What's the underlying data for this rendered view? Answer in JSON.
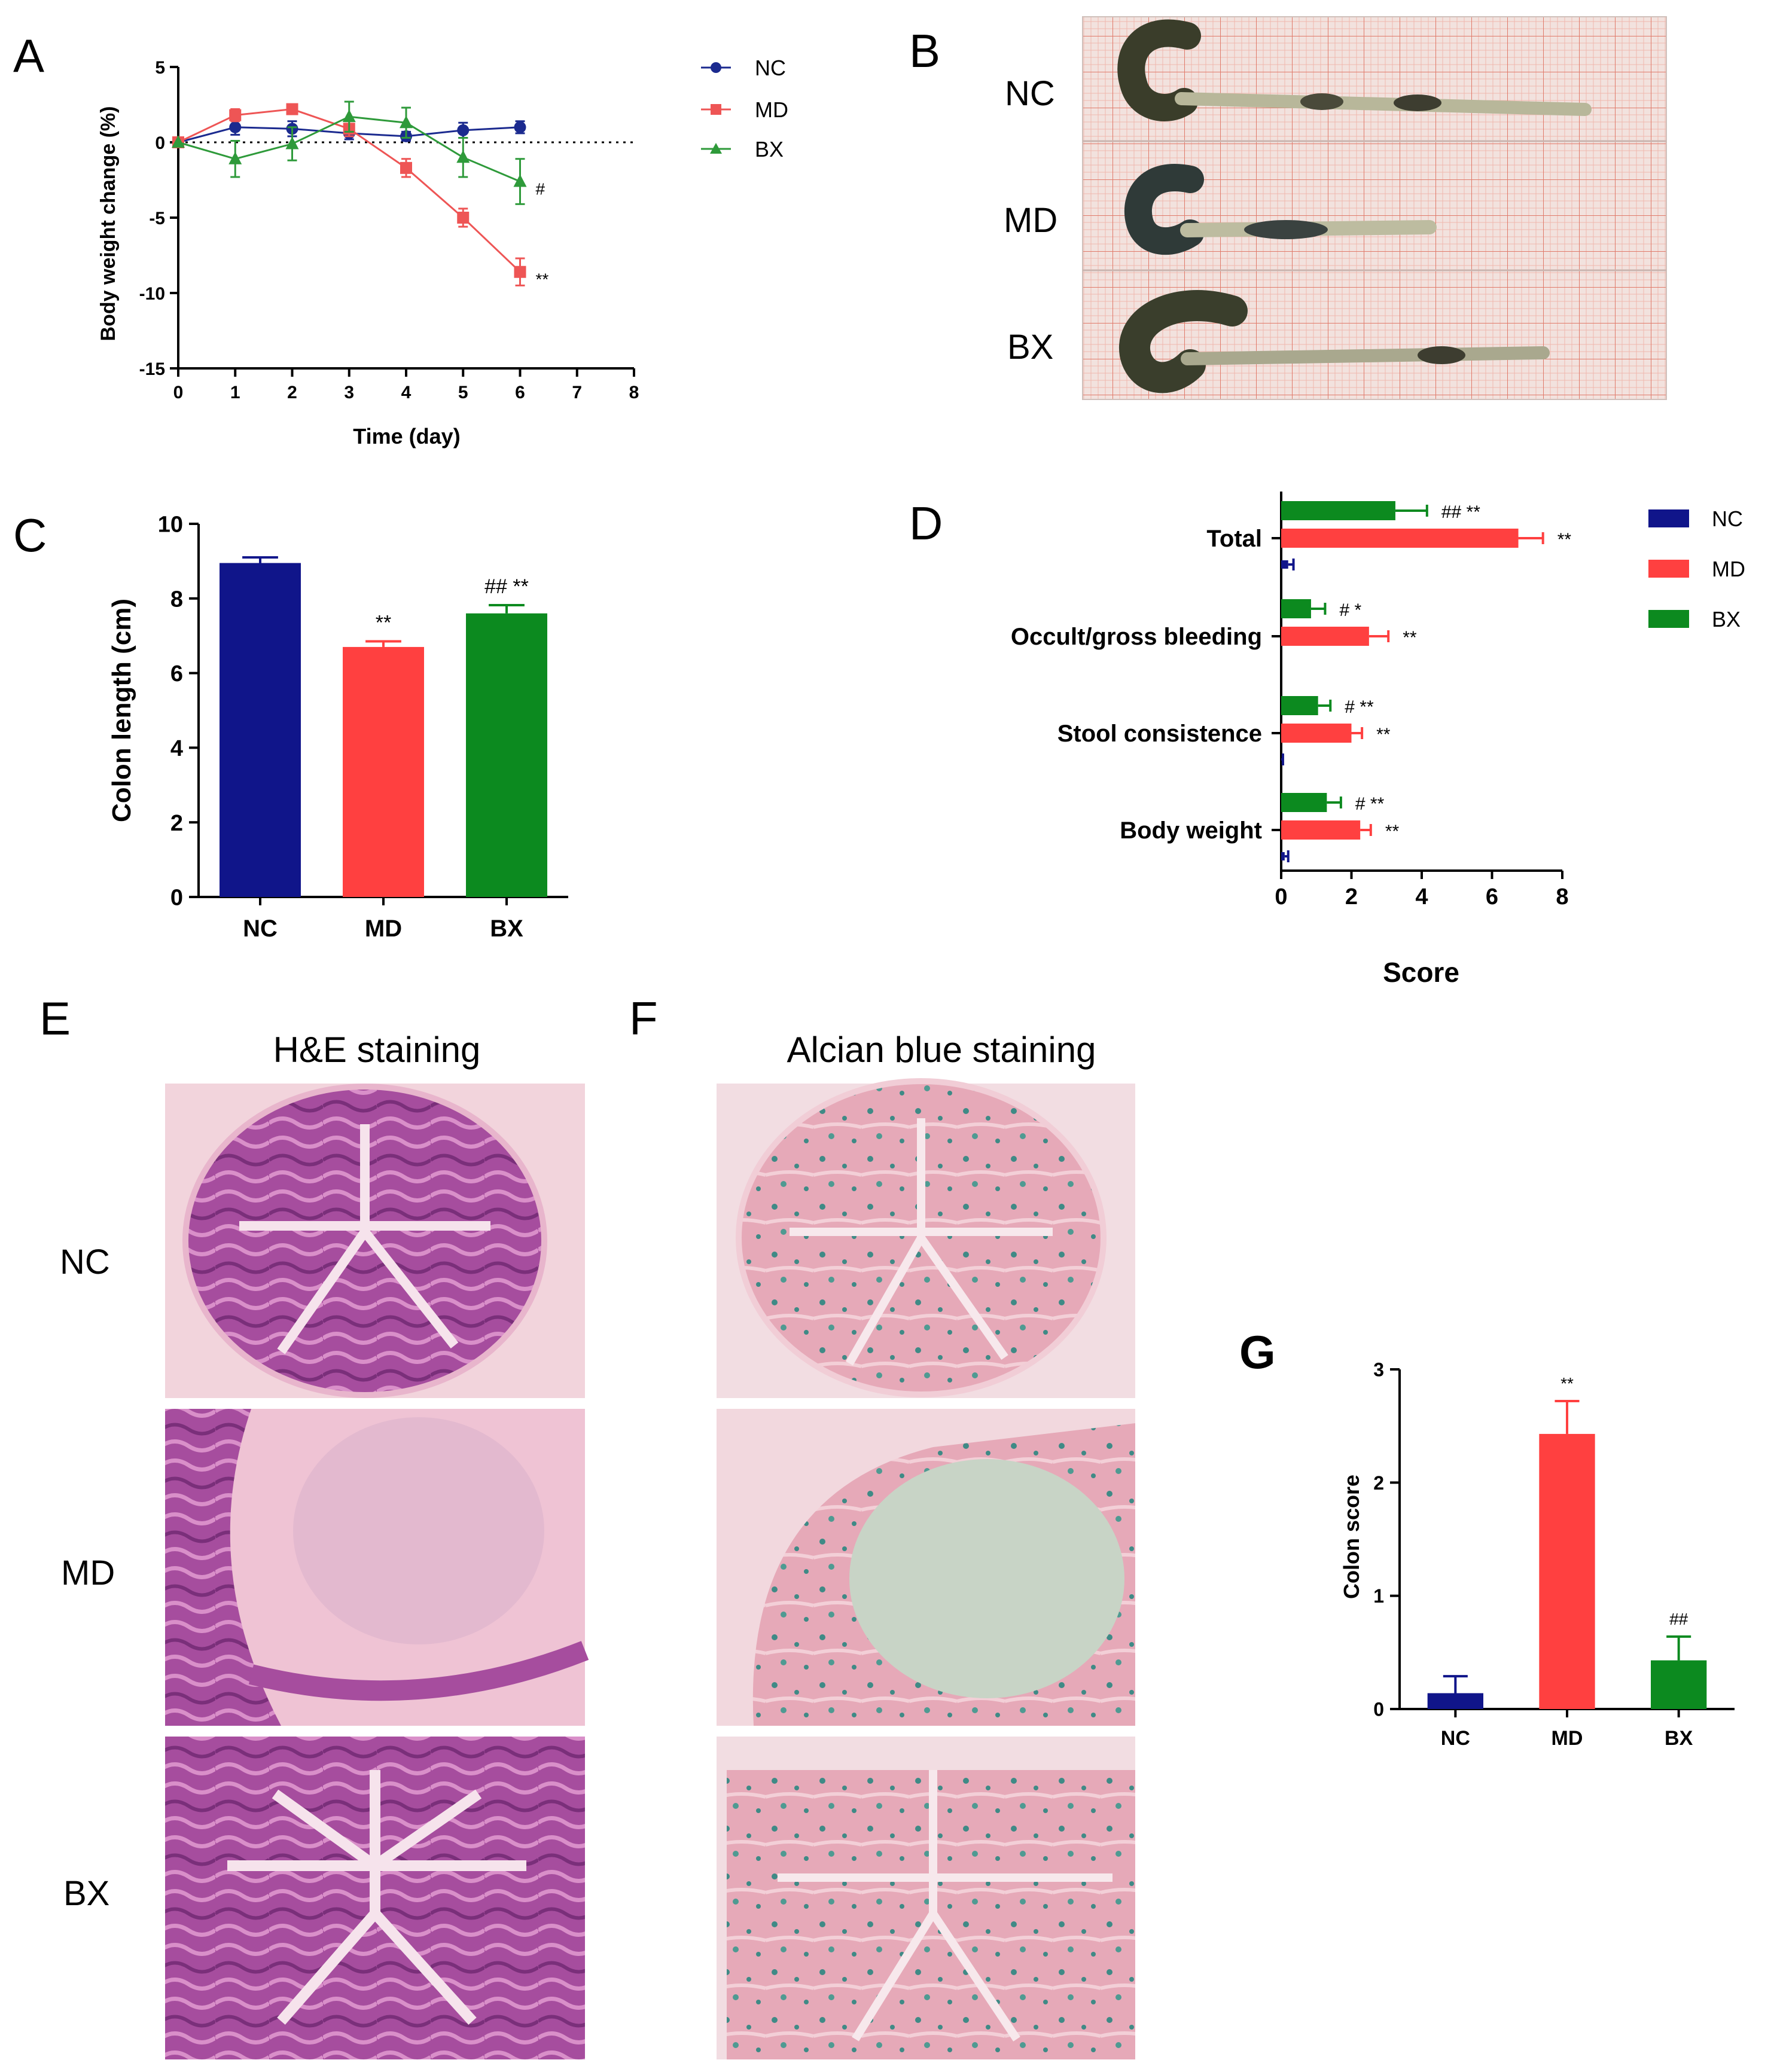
{
  "colors": {
    "NC": "#10158a",
    "MD": "#ff4040",
    "BX": "#0c8a1f",
    "line_NC": "#1b2a8f",
    "line_MD": "#ee5555",
    "line_BX": "#2e9a3a"
  },
  "panels": {
    "A": "A",
    "B": "B",
    "C": "C",
    "D": "D",
    "E": "E",
    "F": "F",
    "G": "G"
  },
  "photo_b": {
    "labels": [
      "NC",
      "MD",
      "BX"
    ]
  },
  "stain_e": {
    "title": "H&E staining",
    "labels": [
      "NC",
      "MD",
      "BX"
    ]
  },
  "stain_f": {
    "title": "Alcian blue staining"
  },
  "chart_data": [
    {
      "id": "A",
      "type": "line",
      "title": "",
      "xlabel": "Time (day)",
      "ylabel": "Body weight change (%)",
      "xlim": [
        0,
        8
      ],
      "ylim": [
        -15,
        5
      ],
      "xticks": [
        "0",
        "1",
        "2",
        "3",
        "4",
        "5",
        "6",
        "7",
        "8"
      ],
      "yticks": [
        "5",
        "0",
        "-5",
        "-10",
        "-15"
      ],
      "zero_line": "dotted",
      "legend": [
        "NC",
        "MD",
        "BX"
      ],
      "x": [
        0,
        1,
        2,
        3,
        4,
        5,
        6
      ],
      "series": [
        {
          "name": "NC",
          "marker": "circle",
          "values": [
            0,
            1.0,
            0.9,
            0.6,
            0.4,
            0.8,
            1.0
          ],
          "errors": [
            0,
            0.5,
            0.5,
            0.4,
            0.3,
            0.5,
            0.4
          ],
          "annotation": ""
        },
        {
          "name": "MD",
          "marker": "square",
          "values": [
            0,
            1.8,
            2.2,
            0.9,
            -1.7,
            -5.0,
            -8.6
          ],
          "errors": [
            0,
            0.4,
            0.3,
            0.5,
            0.6,
            0.6,
            0.9
          ],
          "annotation": "**"
        },
        {
          "name": "BX",
          "marker": "triangle",
          "values": [
            0,
            -1.1,
            -0.1,
            1.7,
            1.3,
            -1.0,
            -2.6
          ],
          "errors": [
            0,
            1.2,
            1.1,
            1.0,
            1.0,
            1.3,
            1.5
          ],
          "annotation": "#"
        }
      ]
    },
    {
      "id": "C",
      "type": "bar",
      "title": "",
      "xlabel": "",
      "ylabel": "Colon length (cm)",
      "ylim": [
        0,
        10
      ],
      "yticks": [
        "0",
        "2",
        "4",
        "6",
        "8",
        "10"
      ],
      "categories": [
        "NC",
        "MD",
        "BX"
      ],
      "values": [
        8.95,
        6.7,
        7.6
      ],
      "errors": [
        0.15,
        0.15,
        0.22
      ],
      "annotations": [
        "",
        "**",
        "## **"
      ]
    },
    {
      "id": "D",
      "type": "bar",
      "orientation": "horizontal",
      "title": "",
      "xlabel": "Score",
      "ylabel": "",
      "xlim": [
        0,
        8
      ],
      "xticks": [
        "0",
        "2",
        "4",
        "6",
        "8"
      ],
      "categories": [
        "Total",
        "Occult/gross bleeding",
        "Stool consistence",
        "Body weight"
      ],
      "legend": [
        "NC",
        "MD",
        "BX"
      ],
      "series": [
        {
          "name": "BX",
          "values": [
            3.25,
            0.85,
            1.05,
            1.3
          ],
          "errors": [
            0.9,
            0.4,
            0.35,
            0.4
          ],
          "annotations": [
            "## **",
            "# *",
            "# **",
            "# **"
          ]
        },
        {
          "name": "MD",
          "values": [
            6.75,
            2.5,
            2.0,
            2.25
          ],
          "errors": [
            0.7,
            0.55,
            0.3,
            0.3
          ],
          "annotations": [
            "**",
            "**",
            "**",
            "**"
          ]
        },
        {
          "name": "NC",
          "values": [
            0.2,
            0.0,
            0.0,
            0.1
          ],
          "errors": [
            0.15,
            0.0,
            0.05,
            0.1
          ],
          "annotations": [
            "",
            "",
            "",
            ""
          ]
        }
      ]
    },
    {
      "id": "G",
      "type": "bar",
      "title": "",
      "xlabel": "",
      "ylabel": "Colon score",
      "ylim": [
        0,
        3
      ],
      "yticks": [
        "0",
        "1",
        "2",
        "3"
      ],
      "categories": [
        "NC",
        "MD",
        "BX"
      ],
      "values": [
        0.14,
        2.43,
        0.43
      ],
      "errors": [
        0.15,
        0.29,
        0.21
      ],
      "annotations": [
        "",
        "**",
        "##"
      ]
    }
  ]
}
